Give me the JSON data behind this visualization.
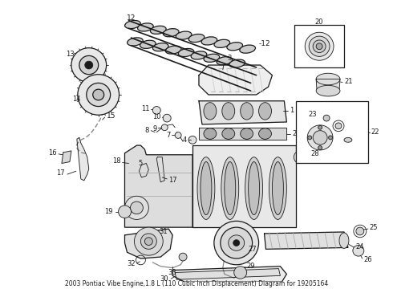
{
  "title": "2003 Pontiac Vibe Engine,1.8 L (110 Cubic Inch Displacement) Diagram for 19205164",
  "bg": "#ffffff",
  "lc": "#1a1a1a",
  "lw_thin": 0.6,
  "lw_med": 0.9,
  "lw_thick": 1.2,
  "fig_w": 4.9,
  "fig_h": 3.6,
  "dpi": 100,
  "label_fs": 6.0,
  "title_fs": 5.5
}
